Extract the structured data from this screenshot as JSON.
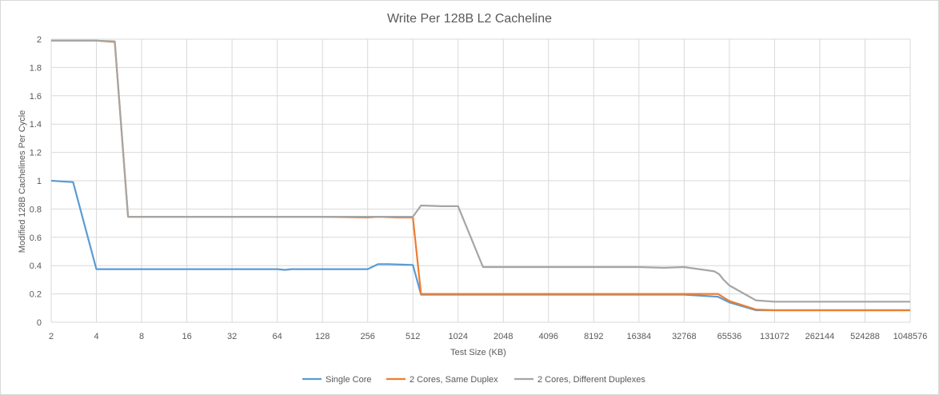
{
  "chart_data": {
    "type": "line",
    "title": "Write Per 128B L2 Cacheline",
    "xlabel": "Test Size (KB)",
    "ylabel": "Modified 128B Cachelines Per Cycle",
    "x_scale": "log2",
    "xlim": [
      2,
      1048576
    ],
    "ylim": [
      0,
      2
    ],
    "x_ticks": [
      "2",
      "4",
      "8",
      "16",
      "32",
      "64",
      "128",
      "256",
      "512",
      "1024",
      "2048",
      "4096",
      "8192",
      "16384",
      "32768",
      "65536",
      "131072",
      "262144",
      "524288",
      "1048576"
    ],
    "y_ticks": [
      "0",
      "0.2",
      "0.4",
      "0.6",
      "0.8",
      "1",
      "1.2",
      "1.4",
      "1.6",
      "1.8",
      "2"
    ],
    "grid": "horizontal-and-vertical",
    "legend_position": "bottom",
    "series": [
      {
        "name": "Single Core",
        "color": "#5b9bd5",
        "x": [
          2,
          2.8,
          4,
          8,
          16,
          32,
          64,
          72,
          80,
          128,
          256,
          300,
          350,
          512,
          580,
          1024,
          2048,
          4096,
          8192,
          16384,
          32768,
          55000,
          65536,
          98304,
          131072,
          262144,
          524288,
          1048576
        ],
        "y": [
          1.0,
          0.99,
          0.375,
          0.375,
          0.375,
          0.375,
          0.375,
          0.37,
          0.375,
          0.375,
          0.375,
          0.41,
          0.41,
          0.405,
          0.195,
          0.195,
          0.195,
          0.195,
          0.195,
          0.195,
          0.195,
          0.18,
          0.14,
          0.085,
          0.085,
          0.085,
          0.085,
          0.085
        ]
      },
      {
        "name": "2 Cores, Same Duplex",
        "color": "#ed7d31",
        "x": [
          2,
          4,
          5.3,
          6.5,
          8,
          16,
          32,
          64,
          128,
          256,
          300,
          400,
          512,
          580,
          1024,
          2048,
          4096,
          8192,
          16384,
          32768,
          55000,
          65536,
          98304,
          131072,
          262144,
          524288,
          1048576
        ],
        "y": [
          1.99,
          1.99,
          1.98,
          0.745,
          0.745,
          0.745,
          0.745,
          0.745,
          0.745,
          0.74,
          0.745,
          0.74,
          0.74,
          0.2,
          0.2,
          0.2,
          0.2,
          0.2,
          0.2,
          0.2,
          0.2,
          0.15,
          0.09,
          0.085,
          0.085,
          0.085,
          0.085
        ]
      },
      {
        "name": "2 Cores, Different Duplexes",
        "color": "#a5a5a5",
        "x": [
          2,
          4,
          5.3,
          6.5,
          8,
          16,
          32,
          64,
          128,
          256,
          300,
          400,
          512,
          580,
          800,
          1024,
          1500,
          2048,
          4096,
          8192,
          16384,
          24000,
          32768,
          52000,
          56000,
          60000,
          65536,
          98304,
          131072,
          262144,
          524288,
          1048576
        ],
        "y": [
          1.99,
          1.99,
          1.985,
          0.745,
          0.745,
          0.745,
          0.745,
          0.745,
          0.745,
          0.745,
          0.745,
          0.745,
          0.745,
          0.825,
          0.82,
          0.82,
          0.39,
          0.39,
          0.39,
          0.39,
          0.39,
          0.385,
          0.39,
          0.36,
          0.34,
          0.3,
          0.26,
          0.155,
          0.145,
          0.145,
          0.145,
          0.145
        ]
      }
    ]
  }
}
